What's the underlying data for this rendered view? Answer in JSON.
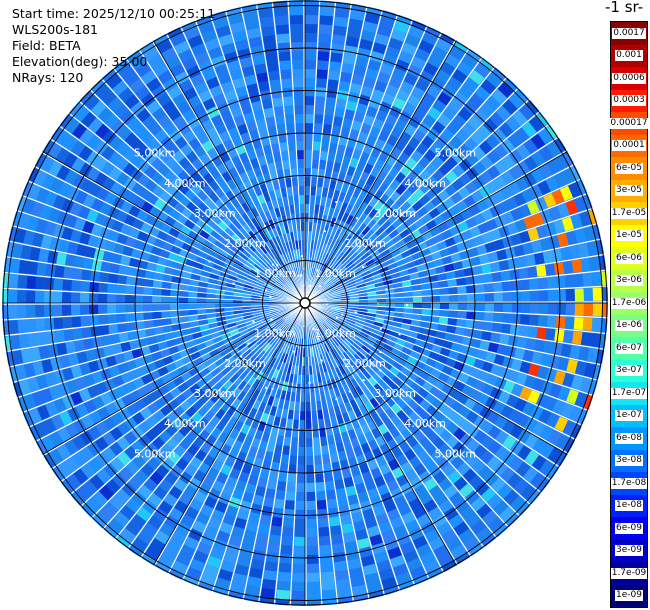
{
  "info": {
    "start_time": "Start time: 2025/12/10 00:25:11",
    "instrument": "WLS200s-181",
    "field": "Field: BETA",
    "elevation": "Elevation(deg): 35.00",
    "nrays": "NRays: 120"
  },
  "colorbar": {
    "title": "-1 sr-",
    "labels": [
      "0.0017",
      "0.001",
      "0.0006",
      "0.0003",
      "0.00017",
      "0.0001",
      "6e-05",
      "3e-05",
      "1.7e-05",
      "1e-05",
      "6e-06",
      "3e-06",
      "1.7e-06",
      "1e-06",
      "6e-07",
      "3e-07",
      "1.7e-07",
      "1e-07",
      "6e-08",
      "3e-08",
      "1.7e-08",
      "1e-08",
      "6e-09",
      "3e-09",
      "1.7e-09",
      "1e-09"
    ],
    "colors": [
      "#8b0000",
      "#b00000",
      "#d80000",
      "#ff1a00",
      "#ff4a00",
      "#ff6a00",
      "#ff8c00",
      "#ffad00",
      "#ffd000",
      "#ffff00",
      "#dfff20",
      "#b9ff48",
      "#9bff66",
      "#77ff88",
      "#52ffab",
      "#2bffd3",
      "#11e6f5",
      "#00c0ff",
      "#0096ff",
      "#0070ff",
      "#0046ff",
      "#0020ff",
      "#0000ef",
      "#0000c8",
      "#00009f",
      "#000078"
    ]
  },
  "range_rings": {
    "labels": [
      "1.00km",
      "2.00km",
      "3.00km",
      "4.00km",
      "5.00km"
    ]
  }
}
